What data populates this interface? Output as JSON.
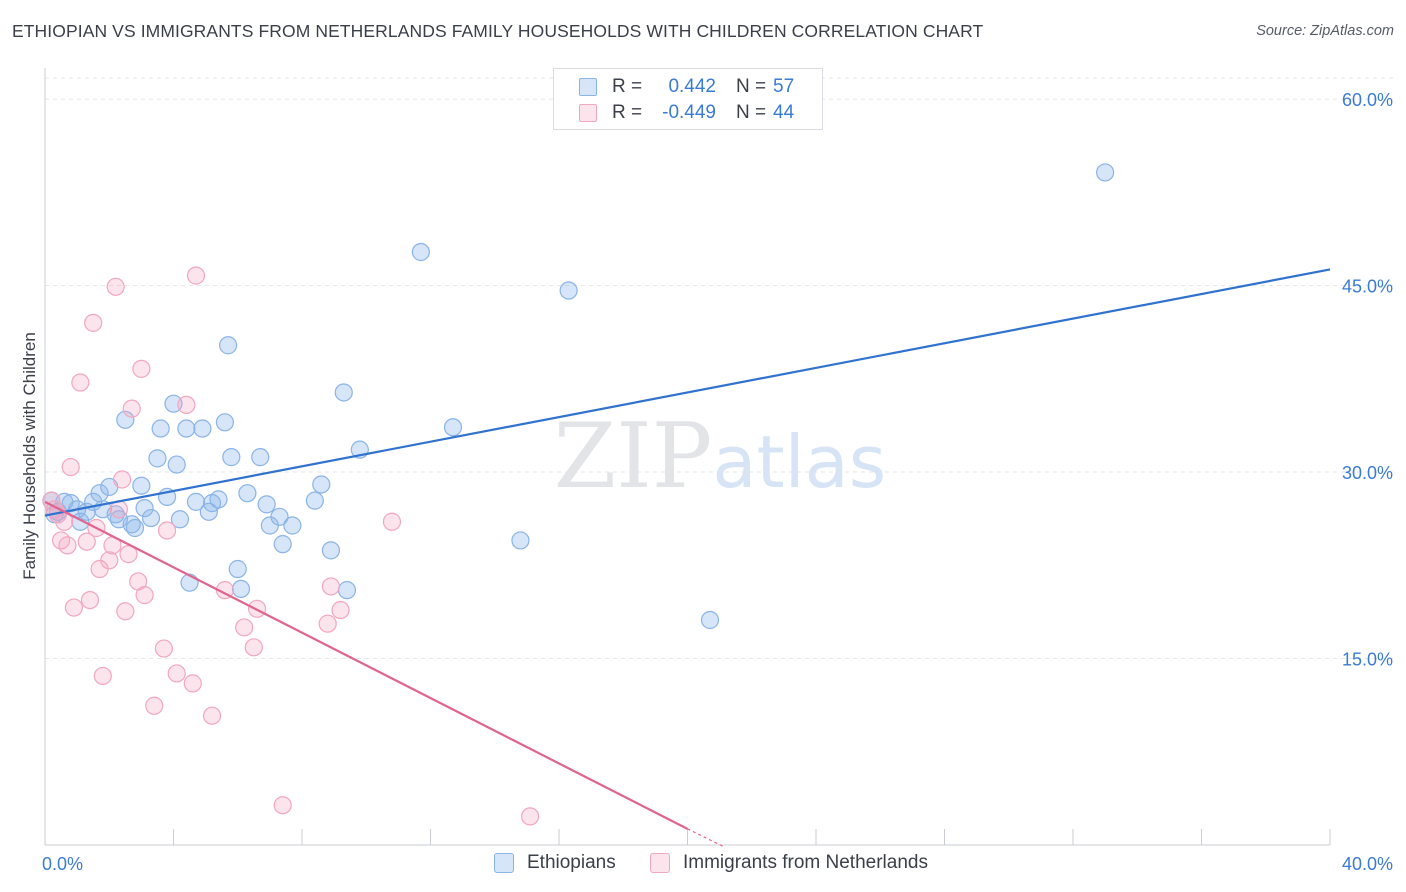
{
  "chart_data": {
    "type": "scatter",
    "title": "ETHIOPIAN VS IMMIGRANTS FROM NETHERLANDS FAMILY HOUSEHOLDS WITH CHILDREN CORRELATION CHART",
    "source": "Source: ZipAtlas.com",
    "xlabel": "",
    "ylabel": "Family Households with Children",
    "xlim": [
      0,
      40
    ],
    "ylim": [
      0,
      62.5
    ],
    "y_ticks": [
      {
        "value": 15,
        "label": "15.0%"
      },
      {
        "value": 30,
        "label": "30.0%"
      },
      {
        "value": 45,
        "label": "45.0%"
      },
      {
        "value": 60,
        "label": "60.0%"
      }
    ],
    "x_tick_labels": {
      "min": "0.0%",
      "max": "40.0%"
    },
    "grid": true,
    "legend_position": "top-center",
    "watermark": "ZIPatlas",
    "series": [
      {
        "name": "Ethiopians",
        "R": "0.442",
        "N": "57",
        "color": "#8ab4e8",
        "fill": "rgba(138,180,232,0.35)",
        "line_color": "#2f72d0",
        "trend": {
          "x0": 0,
          "y0": 26.5,
          "x1": 40,
          "y1": 46.3
        },
        "points": [
          [
            0.2,
            27.7
          ],
          [
            0.4,
            26.8
          ],
          [
            0.6,
            27.6
          ],
          [
            0.8,
            27.5
          ],
          [
            1.0,
            27.0
          ],
          [
            1.1,
            26.0
          ],
          [
            1.3,
            26.8
          ],
          [
            1.5,
            27.6
          ],
          [
            1.7,
            28.3
          ],
          [
            1.8,
            27.0
          ],
          [
            2.0,
            28.8
          ],
          [
            2.2,
            26.6
          ],
          [
            2.3,
            26.2
          ],
          [
            2.5,
            34.2
          ],
          [
            2.7,
            25.8
          ],
          [
            2.8,
            25.5
          ],
          [
            3.0,
            28.9
          ],
          [
            3.1,
            27.1
          ],
          [
            3.3,
            26.3
          ],
          [
            3.5,
            31.1
          ],
          [
            3.6,
            33.5
          ],
          [
            3.8,
            28.0
          ],
          [
            4.0,
            35.5
          ],
          [
            4.1,
            30.6
          ],
          [
            4.2,
            26.2
          ],
          [
            4.4,
            33.5
          ],
          [
            4.5,
            21.1
          ],
          [
            4.7,
            27.6
          ],
          [
            4.9,
            33.5
          ],
          [
            5.1,
            26.8
          ],
          [
            5.2,
            27.5
          ],
          [
            5.4,
            27.8
          ],
          [
            5.6,
            34.0
          ],
          [
            5.7,
            40.2
          ],
          [
            5.8,
            31.2
          ],
          [
            6.0,
            22.2
          ],
          [
            6.1,
            20.6
          ],
          [
            6.3,
            28.3
          ],
          [
            6.7,
            31.2
          ],
          [
            6.9,
            27.4
          ],
          [
            7.0,
            25.7
          ],
          [
            7.3,
            26.4
          ],
          [
            7.4,
            24.2
          ],
          [
            7.7,
            25.7
          ],
          [
            8.4,
            27.7
          ],
          [
            8.6,
            29.0
          ],
          [
            8.9,
            23.7
          ],
          [
            9.3,
            36.4
          ],
          [
            9.4,
            20.5
          ],
          [
            9.8,
            31.8
          ],
          [
            11.7,
            47.7
          ],
          [
            12.7,
            33.6
          ],
          [
            14.8,
            24.5
          ],
          [
            16.3,
            44.6
          ],
          [
            20.7,
            18.1
          ],
          [
            33.0,
            54.1
          ],
          [
            0.3,
            26.6
          ]
        ]
      },
      {
        "name": "Immigrants from Netherlands",
        "R": "-0.449",
        "N": "44",
        "color": "#f3a6bf",
        "fill": "rgba(243,166,191,0.30)",
        "line_color": "#e0648e",
        "trend": {
          "x0": 0,
          "y0": 27.6,
          "x1": 20.0,
          "y1": 1.3,
          "x_dash_end": 21.1,
          "y_dash_end": -0.1
        },
        "points": [
          [
            0.2,
            27.7
          ],
          [
            0.3,
            27.0
          ],
          [
            0.4,
            26.6
          ],
          [
            0.5,
            24.5
          ],
          [
            0.6,
            26.0
          ],
          [
            0.7,
            24.1
          ],
          [
            0.8,
            30.4
          ],
          [
            0.9,
            19.1
          ],
          [
            1.1,
            37.2
          ],
          [
            1.3,
            24.4
          ],
          [
            1.4,
            19.7
          ],
          [
            1.5,
            42.0
          ],
          [
            1.6,
            25.5
          ],
          [
            1.7,
            22.2
          ],
          [
            1.8,
            13.6
          ],
          [
            2.0,
            22.9
          ],
          [
            2.1,
            24.1
          ],
          [
            2.2,
            44.9
          ],
          [
            2.3,
            27.0
          ],
          [
            2.4,
            29.4
          ],
          [
            2.5,
            18.8
          ],
          [
            2.6,
            23.4
          ],
          [
            2.7,
            35.1
          ],
          [
            2.9,
            21.2
          ],
          [
            3.0,
            38.3
          ],
          [
            3.1,
            20.1
          ],
          [
            3.4,
            11.2
          ],
          [
            3.7,
            15.8
          ],
          [
            3.8,
            25.3
          ],
          [
            4.1,
            13.8
          ],
          [
            4.4,
            35.4
          ],
          [
            4.6,
            13.0
          ],
          [
            4.7,
            45.8
          ],
          [
            5.2,
            10.4
          ],
          [
            5.6,
            20.5
          ],
          [
            6.2,
            17.5
          ],
          [
            6.5,
            15.9
          ],
          [
            6.6,
            19.0
          ],
          [
            7.4,
            3.2
          ],
          [
            8.8,
            17.8
          ],
          [
            8.9,
            20.8
          ],
          [
            9.2,
            18.9
          ],
          [
            10.8,
            26.0
          ],
          [
            15.1,
            2.3
          ]
        ]
      }
    ]
  }
}
